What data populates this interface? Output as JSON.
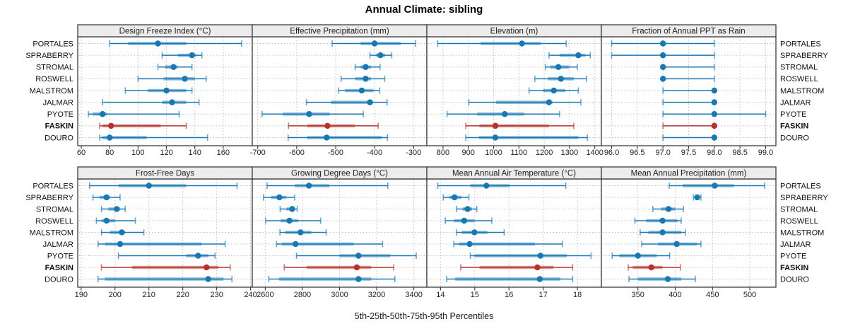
{
  "chart_data": {
    "type": "dotplot",
    "title": "Annual Climate: sibling",
    "caption": "5th-25th-50th-75th-95th Percentiles",
    "percentiles": [
      5,
      25,
      50,
      75,
      95
    ],
    "legend_position": "none",
    "grid": "dotted",
    "sites": [
      "PORTALES",
      "SPRABERRY",
      "STROMAL",
      "ROSWELL",
      "MALSTROM",
      "JALMAR",
      "PYOTE",
      "FASKIN",
      "DOURO"
    ],
    "highlight_site": "FASKIN",
    "style": {
      "series_color": "#1878b4",
      "highlight_color": "#b5332d",
      "grid_color": "#bdbdbd",
      "border_color": "#3c3c3c",
      "strip_bg": "#ececec",
      "text_color": "#1a1a1a"
    },
    "panels": [
      {
        "title": "Design Freeze Index (°C)",
        "xlim": [
          57.5,
          180.5
        ],
        "ticks": [
          60,
          80,
          100,
          120,
          140,
          160
        ],
        "tick_labels": [
          "60",
          "80",
          "100",
          "120",
          "140",
          "160"
        ],
        "values": [
          [
            80,
            93,
            114,
            134,
            173
          ],
          [
            117,
            128,
            138,
            141,
            145
          ],
          [
            114,
            119,
            125,
            128,
            138
          ],
          [
            100,
            118,
            133,
            140,
            148
          ],
          [
            91,
            107,
            120,
            134,
            138
          ],
          [
            75,
            117,
            124,
            134,
            143
          ],
          [
            65,
            68,
            75,
            78,
            129
          ],
          [
            73,
            75,
            81,
            116,
            134
          ],
          [
            73,
            75,
            80,
            106,
            149
          ]
        ]
      },
      {
        "title": "Effective Precipitation (mm)",
        "xlim": [
          -714,
          -266
        ],
        "ticks": [
          -700,
          -600,
          -500,
          -400,
          -300
        ],
        "tick_labels": [
          "-700",
          "-600",
          "-500",
          "-400",
          "-300"
        ],
        "values": [
          [
            -509,
            -436,
            -400,
            -333,
            -295
          ],
          [
            -412,
            -397,
            -385,
            -373,
            -356
          ],
          [
            -450,
            -436,
            -423,
            -409,
            -386
          ],
          [
            -486,
            -450,
            -423,
            -409,
            -374
          ],
          [
            -493,
            -476,
            -433,
            -403,
            -387
          ],
          [
            -575,
            -512,
            -412,
            -404,
            -368
          ],
          [
            -689,
            -636,
            -568,
            -515,
            -429
          ],
          [
            -621,
            -573,
            -521,
            -451,
            -391
          ],
          [
            -622,
            -573,
            -523,
            -382,
            -367
          ]
        ]
      },
      {
        "title": "Elevation (m)",
        "xlim": [
          736,
          1426
        ],
        "ticks": [
          800,
          900,
          1000,
          1100,
          1200,
          1300,
          1400
        ],
        "tick_labels": [
          "800",
          "900",
          "1000",
          "1100",
          "1200",
          "1300",
          "1400"
        ],
        "values": [
          [
            779,
            949,
            1112,
            1186,
            1287
          ],
          [
            1219,
            1261,
            1335,
            1363,
            1382
          ],
          [
            1205,
            1224,
            1256,
            1298,
            1331
          ],
          [
            1163,
            1214,
            1266,
            1317,
            1368
          ],
          [
            1140,
            1196,
            1238,
            1284,
            1335
          ],
          [
            902,
            1009,
            1219,
            1233,
            1345
          ],
          [
            816,
            935,
            1044,
            1121,
            1261
          ],
          [
            890,
            944,
            1007,
            1219,
            1317
          ],
          [
            890,
            942,
            1007,
            1335,
            1371
          ]
        ]
      },
      {
        "title": "Fraction of Annual PPT as Rain",
        "xlim": [
          95.8,
          99.2
        ],
        "ticks": [
          96,
          96.5,
          97,
          97.5,
          98,
          98.5,
          99
        ],
        "tick_labels": [
          "96.0",
          "96.5",
          "97.0",
          "97.5",
          "98.0",
          "98.5",
          "99.0"
        ],
        "values": [
          [
            96,
            97,
            97,
            97,
            98
          ],
          [
            96,
            97,
            97,
            97,
            98
          ],
          [
            97,
            97,
            97,
            97,
            98
          ],
          [
            97,
            97,
            97,
            97,
            98
          ],
          [
            97,
            98,
            98,
            98,
            98
          ],
          [
            97,
            98,
            98,
            98,
            98
          ],
          [
            97,
            98,
            98,
            98,
            99
          ],
          [
            97,
            98,
            98,
            98,
            98
          ],
          [
            97,
            98,
            98,
            98,
            98
          ]
        ]
      },
      {
        "title": "Frost-Free Days",
        "xlim": [
          189,
          240.5
        ],
        "ticks": [
          190,
          200,
          210,
          220,
          230,
          240
        ],
        "tick_labels": [
          "190",
          "200",
          "210",
          "220",
          "230",
          "240"
        ],
        "values": [
          [
            192.5,
            201,
            210,
            221,
            236
          ],
          [
            193.5,
            195.5,
            197.5,
            198.5,
            201.5
          ],
          [
            196,
            198,
            200.5,
            201.5,
            203
          ],
          [
            194.5,
            196,
            197.5,
            200,
            206
          ],
          [
            196,
            198.5,
            202,
            203,
            208.5
          ],
          [
            195,
            197,
            201.5,
            225.5,
            232.5
          ],
          [
            201,
            221,
            224.5,
            227.5,
            229.5
          ],
          [
            196,
            205,
            227,
            230.5,
            234
          ],
          [
            195,
            197,
            227.5,
            232,
            234.5
          ]
        ]
      },
      {
        "title": "Growing Degree Days (°C)",
        "xlim": [
          2530,
          3470
        ],
        "ticks": [
          2600,
          2800,
          3000,
          3200,
          3400
        ],
        "tick_labels": [
          "2600",
          "2800",
          "3000",
          "3200",
          "3400"
        ],
        "values": [
          [
            2610,
            2759,
            2835,
            2945,
            3260
          ],
          [
            2590,
            2632,
            2676,
            2714,
            2759
          ],
          [
            2680,
            2714,
            2745,
            2759,
            2772
          ],
          [
            2602,
            2682,
            2730,
            2778,
            2898
          ],
          [
            2679,
            2708,
            2790,
            2848,
            2928
          ],
          [
            2661,
            2689,
            2763,
            3076,
            3232
          ],
          [
            2768,
            3000,
            3102,
            3273,
            3413
          ],
          [
            2702,
            2822,
            3093,
            3171,
            3292
          ],
          [
            2619,
            2674,
            3102,
            3171,
            3298
          ]
        ]
      },
      {
        "title": "Mean Annual Air Temperature (°C)",
        "xlim": [
          13.6,
          18.7
        ],
        "ticks": [
          14,
          15,
          16,
          17,
          18
        ],
        "tick_labels": [
          "14",
          "15",
          "16",
          "17",
          "18"
        ],
        "values": [
          [
            13.92,
            14.87,
            15.34,
            16.02,
            17.66
          ],
          [
            14.08,
            14.26,
            14.41,
            14.61,
            14.83
          ],
          [
            14.47,
            14.64,
            14.79,
            14.92,
            15.06
          ],
          [
            14.14,
            14.4,
            14.69,
            14.99,
            15.5
          ],
          [
            14.47,
            14.62,
            14.99,
            15.37,
            15.86
          ],
          [
            14.39,
            14.54,
            14.85,
            16.76,
            17.56
          ],
          [
            14.87,
            14.99,
            16.92,
            17.69,
            18.4
          ],
          [
            14.59,
            15.14,
            16.83,
            17.3,
            17.86
          ],
          [
            14.18,
            14.43,
            16.9,
            17.5,
            17.86
          ]
        ]
      },
      {
        "title": "Mean Annual Precipitation (mm)",
        "xlim": [
          301,
          535
        ],
        "ticks": [
          350,
          400,
          450,
          500
        ],
        "tick_labels": [
          "350",
          "400",
          "450",
          "500"
        ],
        "values": [
          [
            392,
            410,
            453,
            479,
            520
          ],
          [
            424.5,
            426.5,
            429.5,
            432,
            434.5
          ],
          [
            370,
            381,
            391,
            400,
            411
          ],
          [
            346,
            361,
            383,
            403,
            408
          ],
          [
            353,
            364,
            383,
            408,
            413.5
          ],
          [
            355,
            377,
            402,
            429,
            434.5
          ],
          [
            315.5,
            325,
            350,
            375,
            392.5
          ],
          [
            337,
            343,
            368,
            383,
            407
          ],
          [
            338,
            350,
            390,
            408,
            427
          ]
        ]
      }
    ]
  }
}
